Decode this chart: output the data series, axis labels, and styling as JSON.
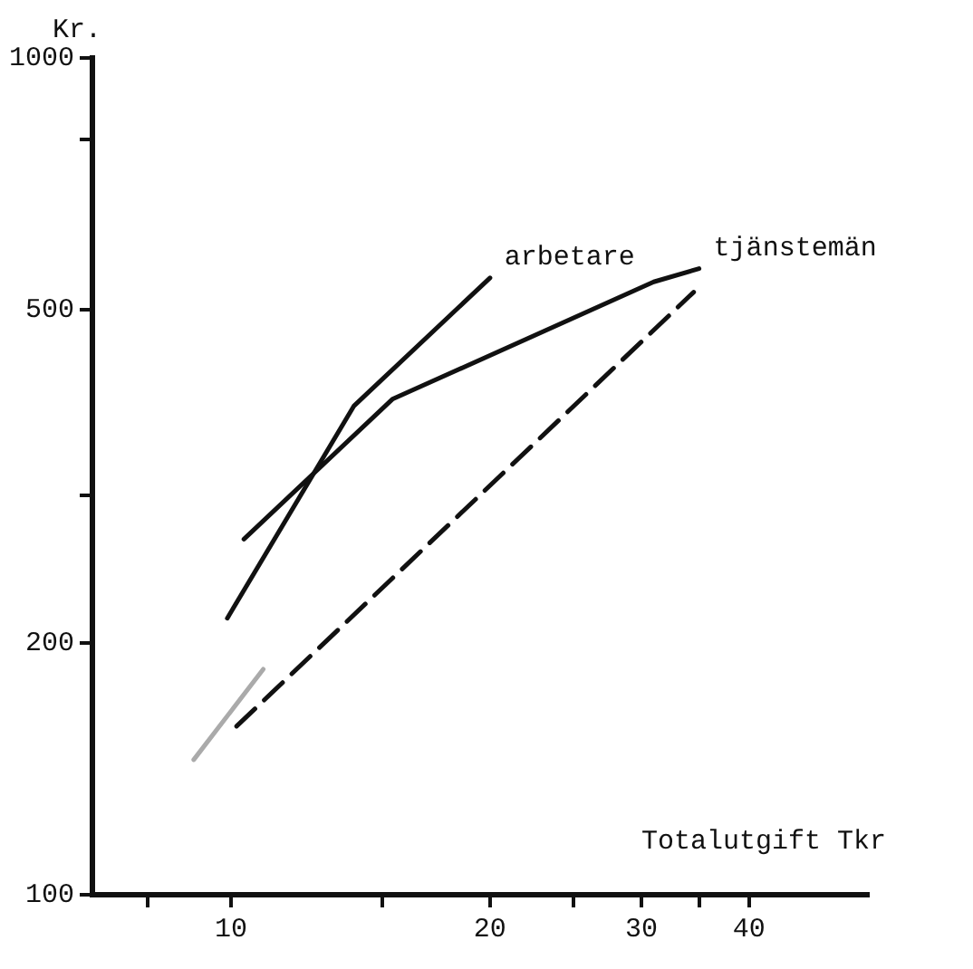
{
  "chart_data": {
    "type": "line",
    "xlabel": "Totalutgift Tkr",
    "ylabel": "Kr.",
    "log": "xy",
    "grid": false,
    "legend": false,
    "marker": "none",
    "xlim": [
      6.9,
      55
    ],
    "xticks": [
      {
        "value": 8,
        "label": null
      },
      10,
      {
        "value": 15,
        "label": null
      },
      20,
      {
        "value": 25,
        "label": null
      },
      30,
      {
        "value": 35,
        "label": null
      },
      40
    ],
    "ylim": [
      100,
      1000
    ],
    "yticks": [
      100,
      200,
      {
        "value": 300,
        "label": null
      },
      500,
      {
        "value": 800,
        "label": null
      },
      1000
    ],
    "series": [
      {
        "name": "arbetare",
        "color": "#111111",
        "line_style": "solid",
        "x": [
          9.9,
          13.9,
          20
        ],
        "values": [
          214,
          384,
          546
        ]
      },
      {
        "name": "tjänstemän",
        "color": "#111111",
        "line_style": "solid",
        "x": [
          10.35,
          15.4,
          31,
          35
        ],
        "values": [
          266,
          391,
          540,
          560
        ]
      },
      {
        "color": "#111111",
        "line_style": "dashed",
        "x": [
          10.15,
          34.5
        ],
        "values": [
          159,
          525
        ]
      },
      {
        "color": "#aaaaaa",
        "line_style": "solid",
        "x": [
          9.05,
          10.9
        ],
        "values": [
          145,
          186
        ]
      }
    ]
  }
}
